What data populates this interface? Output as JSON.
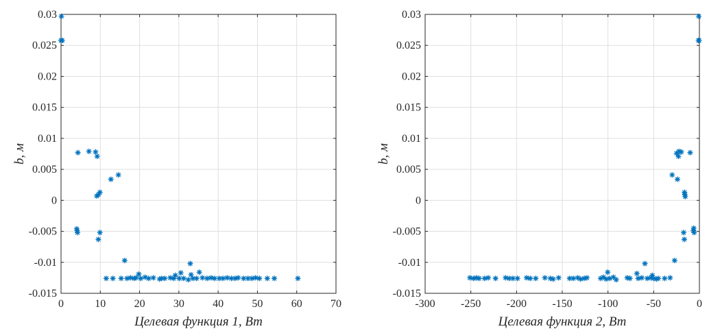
{
  "chart_data": [
    {
      "type": "scatter",
      "xlabel": "Целевая функция 1, Вт",
      "ylabel": "b, м",
      "xlim": [
        0,
        70
      ],
      "ylim": [
        -0.015,
        0.03
      ],
      "xticks": [
        0,
        10,
        20,
        30,
        40,
        50,
        60,
        70
      ],
      "xtick_labels": [
        "0",
        "10",
        "20",
        "30",
        "40",
        "50",
        "60",
        "70"
      ],
      "yticks": [
        -0.015,
        -0.01,
        -0.005,
        0,
        0.005,
        0.01,
        0.015,
        0.02,
        0.025,
        0.03
      ],
      "ytick_labels": [
        "-0.015",
        "-0.01",
        "-0.005",
        "0",
        "0.005",
        "0.01",
        "0.015",
        "0.02",
        "0.025",
        "0.03"
      ],
      "grid": true,
      "marker": "*",
      "color": "#0072bd",
      "points": [
        [
          0.0,
          0.0258
        ],
        [
          0.3,
          0.0258
        ],
        [
          0.1,
          0.0297
        ],
        [
          4.3,
          0.0077
        ],
        [
          7.1,
          0.0079
        ],
        [
          8.8,
          0.0078
        ],
        [
          9.2,
          0.0071
        ],
        [
          14.6,
          0.0041
        ],
        [
          12.7,
          0.0034
        ],
        [
          9.9,
          0.0013
        ],
        [
          9.5,
          0.0009
        ],
        [
          9.1,
          0.0007
        ],
        [
          4.0,
          -0.0046
        ],
        [
          4.1,
          -0.0049
        ],
        [
          4.2,
          -0.0052
        ],
        [
          9.9,
          -0.0052
        ],
        [
          9.5,
          -0.0063
        ],
        [
          16.2,
          -0.0097
        ],
        [
          32.9,
          -0.0102
        ],
        [
          35.2,
          -0.0116
        ],
        [
          30.5,
          -0.0117
        ],
        [
          19.8,
          -0.0119
        ],
        [
          29.1,
          -0.0121
        ],
        [
          33.1,
          -0.012
        ],
        [
          11.5,
          -0.0126
        ],
        [
          13.2,
          -0.0126
        ],
        [
          15.3,
          -0.0126
        ],
        [
          16.8,
          -0.0126
        ],
        [
          17.7,
          -0.0125
        ],
        [
          18.6,
          -0.0126
        ],
        [
          19.1,
          -0.0125
        ],
        [
          20.3,
          -0.0126
        ],
        [
          21.4,
          -0.0124
        ],
        [
          22.3,
          -0.0126
        ],
        [
          23.5,
          -0.0125
        ],
        [
          25.1,
          -0.0127
        ],
        [
          25.6,
          -0.0126
        ],
        [
          26.4,
          -0.0126
        ],
        [
          27.8,
          -0.0125
        ],
        [
          28.7,
          -0.0126
        ],
        [
          30.1,
          -0.0126
        ],
        [
          31.2,
          -0.0126
        ],
        [
          32.4,
          -0.0128
        ],
        [
          33.6,
          -0.0126
        ],
        [
          34.5,
          -0.0126
        ],
        [
          36.0,
          -0.0125
        ],
        [
          37.2,
          -0.0126
        ],
        [
          38.2,
          -0.0125
        ],
        [
          39.1,
          -0.0126
        ],
        [
          40.3,
          -0.0126
        ],
        [
          41.2,
          -0.0126
        ],
        [
          42.3,
          -0.0125
        ],
        [
          43.4,
          -0.0126
        ],
        [
          44.3,
          -0.0126
        ],
        [
          45.1,
          -0.0125
        ],
        [
          46.5,
          -0.0126
        ],
        [
          47.6,
          -0.0126
        ],
        [
          48.6,
          -0.0126
        ],
        [
          49.5,
          -0.0125
        ],
        [
          50.5,
          -0.0126
        ],
        [
          52.5,
          -0.0126
        ],
        [
          54.3,
          -0.0126
        ],
        [
          60.3,
          -0.0126
        ]
      ]
    },
    {
      "type": "scatter",
      "xlabel": "Целевая функция 2, Вт",
      "ylabel": "b, м",
      "xlim": [
        -300,
        0
      ],
      "ylim": [
        -0.015,
        0.03
      ],
      "xticks": [
        -300,
        -250,
        -200,
        -150,
        -100,
        -50,
        0
      ],
      "xtick_labels": [
        "-300",
        "-250",
        "-200",
        "-150",
        "-100",
        "-50",
        "0"
      ],
      "yticks": [
        -0.015,
        -0.01,
        -0.005,
        0,
        0.005,
        0.01,
        0.015,
        0.02,
        0.025,
        0.03
      ],
      "ytick_labels": [
        "-0.015",
        "-0.01",
        "-0.005",
        "0",
        "0.005",
        "0.01",
        "0.015",
        "0.02",
        "0.025",
        "0.03"
      ],
      "grid": true,
      "marker": "*",
      "color": "#0072bd",
      "points": [
        [
          -1.0,
          0.0258
        ],
        [
          -0.4,
          0.0258
        ],
        [
          -0.7,
          0.0297
        ],
        [
          -25.0,
          0.0076
        ],
        [
          -22.4,
          0.0079
        ],
        [
          -22.9,
          0.0071
        ],
        [
          -19.8,
          0.0078
        ],
        [
          -10.1,
          0.0077
        ],
        [
          -29.8,
          0.0041
        ],
        [
          -24.0,
          0.0034
        ],
        [
          -16.3,
          0.0013
        ],
        [
          -15.9,
          0.0009
        ],
        [
          -15.5,
          0.0006
        ],
        [
          -6.2,
          -0.0045
        ],
        [
          -6.6,
          -0.0049
        ],
        [
          -5.7,
          -0.0052
        ],
        [
          -17.2,
          -0.0052
        ],
        [
          -16.5,
          -0.0063
        ],
        [
          -27.1,
          -0.0097
        ],
        [
          -59.6,
          -0.0102
        ],
        [
          -100.3,
          -0.0116
        ],
        [
          -68.4,
          -0.0118
        ],
        [
          -51.5,
          -0.0121
        ],
        [
          -251.0,
          -0.0125
        ],
        [
          -247.0,
          -0.0126
        ],
        [
          -244.0,
          -0.0125
        ],
        [
          -241.0,
          -0.0126
        ],
        [
          -235.0,
          -0.0126
        ],
        [
          -231.0,
          -0.0125
        ],
        [
          -223.0,
          -0.0126
        ],
        [
          -212.0,
          -0.0125
        ],
        [
          -208.0,
          -0.0126
        ],
        [
          -204.0,
          -0.0126
        ],
        [
          -199.0,
          -0.0126
        ],
        [
          -189.0,
          -0.0125
        ],
        [
          -185.0,
          -0.0126
        ],
        [
          -179.0,
          -0.0126
        ],
        [
          -169.0,
          -0.0125
        ],
        [
          -163.0,
          -0.0126
        ],
        [
          -160.0,
          -0.0127
        ],
        [
          -154.0,
          -0.0125
        ],
        [
          -142.0,
          -0.0126
        ],
        [
          -138.0,
          -0.0126
        ],
        [
          -133.0,
          -0.0125
        ],
        [
          -130.0,
          -0.0127
        ],
        [
          -126.0,
          -0.0126
        ],
        [
          -123.0,
          -0.0125
        ],
        [
          -108.0,
          -0.0126
        ],
        [
          -105.0,
          -0.0124
        ],
        [
          -102.0,
          -0.0127
        ],
        [
          -98.0,
          -0.0126
        ],
        [
          -94.0,
          -0.0124
        ],
        [
          -91.0,
          -0.0128
        ],
        [
          -79.0,
          -0.0125
        ],
        [
          -76.0,
          -0.0126
        ],
        [
          -67.0,
          -0.0126
        ],
        [
          -63.0,
          -0.0125
        ],
        [
          -57.0,
          -0.0126
        ],
        [
          -53.0,
          -0.0125
        ],
        [
          -50.0,
          -0.0126
        ],
        [
          -47.0,
          -0.0127
        ],
        [
          -45.0,
          -0.0126
        ],
        [
          -38.0,
          -0.0126
        ],
        [
          -32.0,
          -0.0125
        ]
      ]
    }
  ]
}
